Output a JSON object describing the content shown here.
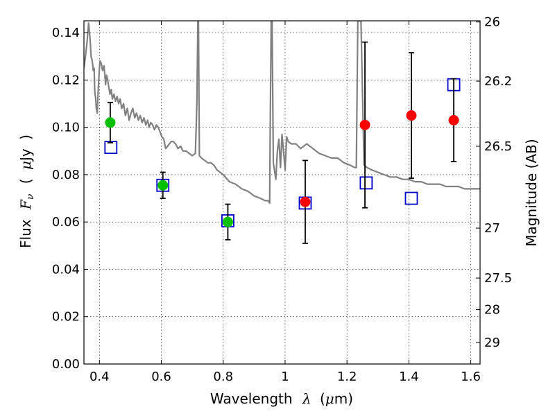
{
  "chart_data": {
    "type": "scatter",
    "xlabel": {
      "prefix": "Wavelength",
      "symbol": "λ",
      "unit_open": "(",
      "unit_mu": "μ",
      "unit_rest": "m)"
    },
    "ylabel": {
      "prefix": "Flux",
      "symbol": "F",
      "subscript": "ν",
      "unit_open": "(",
      "unit_mu": "μ",
      "unit_rest": "Jy",
      "unit_close": ")"
    },
    "y2label": "Magnitude (AB)",
    "xlim": [
      0.35,
      1.63
    ],
    "ylim": [
      0.0,
      0.145
    ],
    "grid": true,
    "x_ticks": [
      {
        "value": 0.4,
        "label": "0.4"
      },
      {
        "value": 0.6,
        "label": "0.6"
      },
      {
        "value": 0.8,
        "label": "0.8"
      },
      {
        "value": 1.0,
        "label": "1"
      },
      {
        "value": 1.2,
        "label": "1.2"
      },
      {
        "value": 1.4,
        "label": "1.4"
      },
      {
        "value": 1.6,
        "label": "1.6"
      }
    ],
    "y_ticks": [
      {
        "value": 0.0,
        "label": "0.00"
      },
      {
        "value": 0.02,
        "label": "0.02"
      },
      {
        "value": 0.04,
        "label": "0.04"
      },
      {
        "value": 0.06,
        "label": "0.06"
      },
      {
        "value": 0.08,
        "label": "0.08"
      },
      {
        "value": 0.1,
        "label": "0.10"
      },
      {
        "value": 0.12,
        "label": "0.12"
      },
      {
        "value": 0.14,
        "label": "0.14"
      }
    ],
    "y2_ticks": [
      {
        "flux": 0.1445,
        "label": "26"
      },
      {
        "flux": 0.1195,
        "label": "26.2"
      },
      {
        "flux": 0.092,
        "label": "26.5"
      },
      {
        "flux": 0.0574,
        "label": "27"
      },
      {
        "flux": 0.0363,
        "label": "27.5"
      },
      {
        "flux": 0.023,
        "label": "28"
      },
      {
        "flux": 0.0091,
        "label": "29"
      }
    ],
    "template_spectrum": {
      "color": "#808080",
      "x": [
        0.35,
        0.355,
        0.36,
        0.365,
        0.37,
        0.373,
        0.377,
        0.38,
        0.383,
        0.385,
        0.388,
        0.39,
        0.393,
        0.396,
        0.4,
        0.402,
        0.406,
        0.41,
        0.415,
        0.42,
        0.423,
        0.427,
        0.43,
        0.434,
        0.438,
        0.442,
        0.447,
        0.452,
        0.457,
        0.462,
        0.467,
        0.472,
        0.478,
        0.484,
        0.49,
        0.496,
        0.502,
        0.508,
        0.514,
        0.52,
        0.526,
        0.532,
        0.538,
        0.544,
        0.55,
        0.556,
        0.56,
        0.566,
        0.572,
        0.578,
        0.584,
        0.59,
        0.596,
        0.602,
        0.608,
        0.614,
        0.62,
        0.626,
        0.632,
        0.638,
        0.646,
        0.654,
        0.662,
        0.67,
        0.68,
        0.69,
        0.7,
        0.71,
        0.715,
        0.718,
        0.72,
        0.723,
        0.73,
        0.74,
        0.75,
        0.76,
        0.77,
        0.78,
        0.8,
        0.82,
        0.84,
        0.86,
        0.88,
        0.9,
        0.92,
        0.935,
        0.945,
        0.95,
        0.952,
        0.955,
        0.958,
        0.962,
        0.97,
        0.975,
        0.98,
        0.985,
        0.99,
        0.995,
        1.0,
        1.005,
        1.01,
        1.02,
        1.035,
        1.05,
        1.07,
        1.09,
        1.11,
        1.13,
        1.15,
        1.17,
        1.19,
        1.21,
        1.225,
        1.23,
        1.235,
        1.24,
        1.245,
        1.255,
        1.265,
        1.28,
        1.3,
        1.32,
        1.34,
        1.36,
        1.38,
        1.4,
        1.42,
        1.44,
        1.46,
        1.48,
        1.5,
        1.52,
        1.54,
        1.56,
        1.58,
        1.6,
        1.63
      ],
      "y": [
        0.125,
        0.13,
        0.136,
        0.144,
        0.137,
        0.13,
        0.128,
        0.124,
        0.125,
        0.115,
        0.112,
        0.108,
        0.106,
        0.115,
        0.125,
        0.128,
        0.127,
        0.124,
        0.126,
        0.118,
        0.122,
        0.12,
        0.117,
        0.114,
        0.116,
        0.112,
        0.114,
        0.111,
        0.113,
        0.11,
        0.112,
        0.108,
        0.11,
        0.105,
        0.108,
        0.103,
        0.106,
        0.108,
        0.104,
        0.106,
        0.103,
        0.105,
        0.102,
        0.104,
        0.101,
        0.103,
        0.1,
        0.102,
        0.101,
        0.099,
        0.101,
        0.1,
        0.098,
        0.096,
        0.095,
        0.091,
        0.092,
        0.093,
        0.094,
        0.094,
        0.093,
        0.091,
        0.092,
        0.09,
        0.09,
        0.089,
        0.088,
        0.089,
        0.11,
        0.145,
        0.145,
        0.088,
        0.087,
        0.086,
        0.085,
        0.085,
        0.084,
        0.082,
        0.08,
        0.077,
        0.076,
        0.074,
        0.073,
        0.071,
        0.07,
        0.069,
        0.069,
        0.068,
        0.1,
        0.145,
        0.145,
        0.085,
        0.078,
        0.09,
        0.095,
        0.083,
        0.097,
        0.09,
        0.082,
        0.096,
        0.094,
        0.093,
        0.093,
        0.091,
        0.093,
        0.091,
        0.089,
        0.088,
        0.087,
        0.087,
        0.085,
        0.084,
        0.083,
        0.083,
        0.145,
        0.145,
        0.145,
        0.084,
        0.083,
        0.082,
        0.081,
        0.08,
        0.079,
        0.079,
        0.078,
        0.078,
        0.077,
        0.077,
        0.076,
        0.076,
        0.076,
        0.075,
        0.075,
        0.075,
        0.074,
        0.074,
        0.074
      ]
    },
    "observed_optical": {
      "color": "#00c000",
      "points": [
        {
          "x": 0.435,
          "y": 0.102,
          "err": 0.0085
        },
        {
          "x": 0.605,
          "y": 0.0755,
          "err": 0.0055
        },
        {
          "x": 0.815,
          "y": 0.06,
          "err": 0.0075
        }
      ]
    },
    "observed_nir": {
      "color": "#ff0000",
      "points": [
        {
          "x": 1.065,
          "y": 0.0685,
          "err": 0.0175
        },
        {
          "x": 1.258,
          "y": 0.101,
          "err": 0.035
        },
        {
          "x": 1.408,
          "y": 0.105,
          "err": 0.0265
        },
        {
          "x": 1.545,
          "y": 0.103,
          "err": 0.0175
        }
      ]
    },
    "model_photometry": {
      "color": "#0000cc",
      "points": [
        {
          "x": 0.437,
          "y": 0.0915
        },
        {
          "x": 0.605,
          "y": 0.0755
        },
        {
          "x": 0.815,
          "y": 0.0605
        },
        {
          "x": 1.065,
          "y": 0.068
        },
        {
          "x": 1.262,
          "y": 0.0765
        },
        {
          "x": 1.408,
          "y": 0.07
        },
        {
          "x": 1.545,
          "y": 0.118
        }
      ]
    }
  }
}
